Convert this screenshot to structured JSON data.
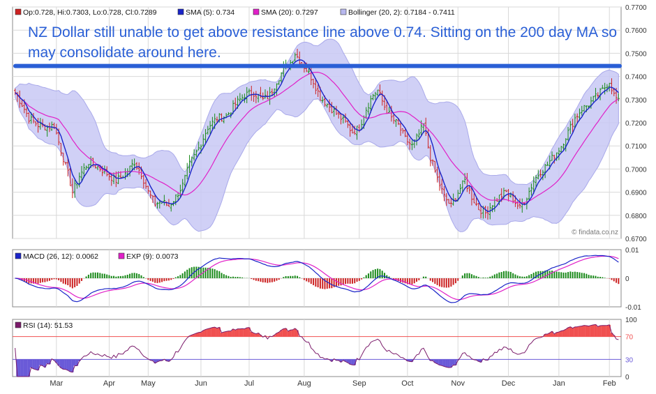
{
  "annotation_text": "NZ Dollar still unable to get above resistance line above 0.74. Sitting on the 200 day MA so may consolidate around here.",
  "watermark": "© findata.co.nz",
  "colors": {
    "up": "#1a8a1a",
    "down": "#cc2222",
    "sma5": "#1a24c8",
    "sma20": "#e020c8",
    "band_fill": "#c8c8f4",
    "band_edge": "#a9a9ea",
    "resistance": "#2a5fd6",
    "annotation": "#2a5fd6",
    "grid": "#d8d8d8",
    "macd": "#1a24c8",
    "signal": "#e020c8",
    "rsi": "#7a1a6a",
    "rsi_over": "#f05050",
    "rsi_under": "#6a5ad8"
  },
  "chart_data": [
    {
      "type": "candlestick",
      "legend": [
        {
          "label": "Op:0.728, Hi:0.7303, Lo:0.728, Cl:0.7289",
          "swatch": "#cc2222"
        },
        {
          "label": "SMA (5): 0.734",
          "swatch": "#1a24c8"
        },
        {
          "label": "SMA (20): 0.7297",
          "swatch": "#e020c8"
        },
        {
          "label": "Bollinger (20, 2): 0.7184 - 0.7411",
          "swatch": "#b8b8ee"
        }
      ],
      "y_ticks": [
        "0.6700",
        "0.6800",
        "0.6900",
        "0.7000",
        "0.7100",
        "0.7200",
        "0.7300",
        "0.7400",
        "0.7500",
        "0.7600",
        "0.7700"
      ],
      "ylim": [
        0.67,
        0.77
      ],
      "x_ticks": [
        "Mar",
        "Apr",
        "May",
        "Jun",
        "Jul",
        "Aug",
        "Sep",
        "Oct",
        "Nov",
        "Dec",
        "Jan",
        "Feb"
      ],
      "x_tick_index": [
        18,
        41,
        58,
        81,
        102,
        126,
        150,
        171,
        193,
        215,
        237,
        259
      ],
      "n_bars": 264,
      "resistance_level": 0.7445,
      "close_anchors": [
        [
          0,
          0.733
        ],
        [
          3,
          0.728
        ],
        [
          6,
          0.722
        ],
        [
          10,
          0.719
        ],
        [
          14,
          0.718
        ],
        [
          17,
          0.719
        ],
        [
          20,
          0.708
        ],
        [
          23,
          0.698
        ],
        [
          25,
          0.69
        ],
        [
          28,
          0.697
        ],
        [
          32,
          0.703
        ],
        [
          36,
          0.701
        ],
        [
          40,
          0.698
        ],
        [
          44,
          0.695
        ],
        [
          48,
          0.698
        ],
        [
          52,
          0.703
        ],
        [
          55,
          0.698
        ],
        [
          58,
          0.69
        ],
        [
          61,
          0.685
        ],
        [
          64,
          0.686
        ],
        [
          67,
          0.684
        ],
        [
          70,
          0.688
        ],
        [
          73,
          0.693
        ],
        [
          76,
          0.702
        ],
        [
          80,
          0.709
        ],
        [
          84,
          0.718
        ],
        [
          88,
          0.722
        ],
        [
          92,
          0.723
        ],
        [
          96,
          0.728
        ],
        [
          100,
          0.732
        ],
        [
          104,
          0.733
        ],
        [
          108,
          0.73
        ],
        [
          111,
          0.732
        ],
        [
          114,
          0.738
        ],
        [
          117,
          0.743
        ],
        [
          120,
          0.746
        ],
        [
          122,
          0.75
        ],
        [
          124,
          0.747
        ],
        [
          127,
          0.743
        ],
        [
          130,
          0.738
        ],
        [
          133,
          0.731
        ],
        [
          136,
          0.728
        ],
        [
          140,
          0.724
        ],
        [
          144,
          0.72
        ],
        [
          147,
          0.716
        ],
        [
          150,
          0.718
        ],
        [
          153,
          0.726
        ],
        [
          156,
          0.732
        ],
        [
          158,
          0.734
        ],
        [
          161,
          0.727
        ],
        [
          164,
          0.722
        ],
        [
          167,
          0.719
        ],
        [
          170,
          0.713
        ],
        [
          173,
          0.71
        ],
        [
          176,
          0.715
        ],
        [
          178,
          0.719
        ],
        [
          181,
          0.705
        ],
        [
          184,
          0.696
        ],
        [
          187,
          0.688
        ],
        [
          190,
          0.684
        ],
        [
          193,
          0.69
        ],
        [
          196,
          0.695
        ],
        [
          199,
          0.688
        ],
        [
          202,
          0.683
        ],
        [
          205,
          0.681
        ],
        [
          208,
          0.685
        ],
        [
          211,
          0.688
        ],
        [
          214,
          0.69
        ],
        [
          217,
          0.687
        ],
        [
          220,
          0.683
        ],
        [
          223,
          0.688
        ],
        [
          226,
          0.695
        ],
        [
          229,
          0.699
        ],
        [
          232,
          0.702
        ],
        [
          235,
          0.706
        ],
        [
          238,
          0.71
        ],
        [
          241,
          0.716
        ],
        [
          244,
          0.722
        ],
        [
          247,
          0.726
        ],
        [
          250,
          0.728
        ],
        [
          253,
          0.731
        ],
        [
          256,
          0.734
        ],
        [
          259,
          0.738
        ],
        [
          261,
          0.732
        ],
        [
          263,
          0.729
        ]
      ]
    },
    {
      "type": "line",
      "legend": [
        {
          "label": "MACD (26, 12): 0.0062",
          "swatch": "#1a24c8"
        },
        {
          "label": "EXP (9): 0.0073",
          "swatch": "#e020c8"
        }
      ],
      "y_ticks": [
        "0.01",
        "0",
        "-0.01"
      ],
      "ylim": [
        -0.01,
        0.01
      ]
    },
    {
      "type": "line",
      "legend": [
        {
          "label": "RSI (14): 51.53",
          "swatch": "#7a1a6a"
        }
      ],
      "y_ticks": [
        "100",
        "70",
        "30",
        "0"
      ],
      "ylim": [
        0,
        100
      ],
      "levels": [
        70,
        30
      ]
    }
  ]
}
